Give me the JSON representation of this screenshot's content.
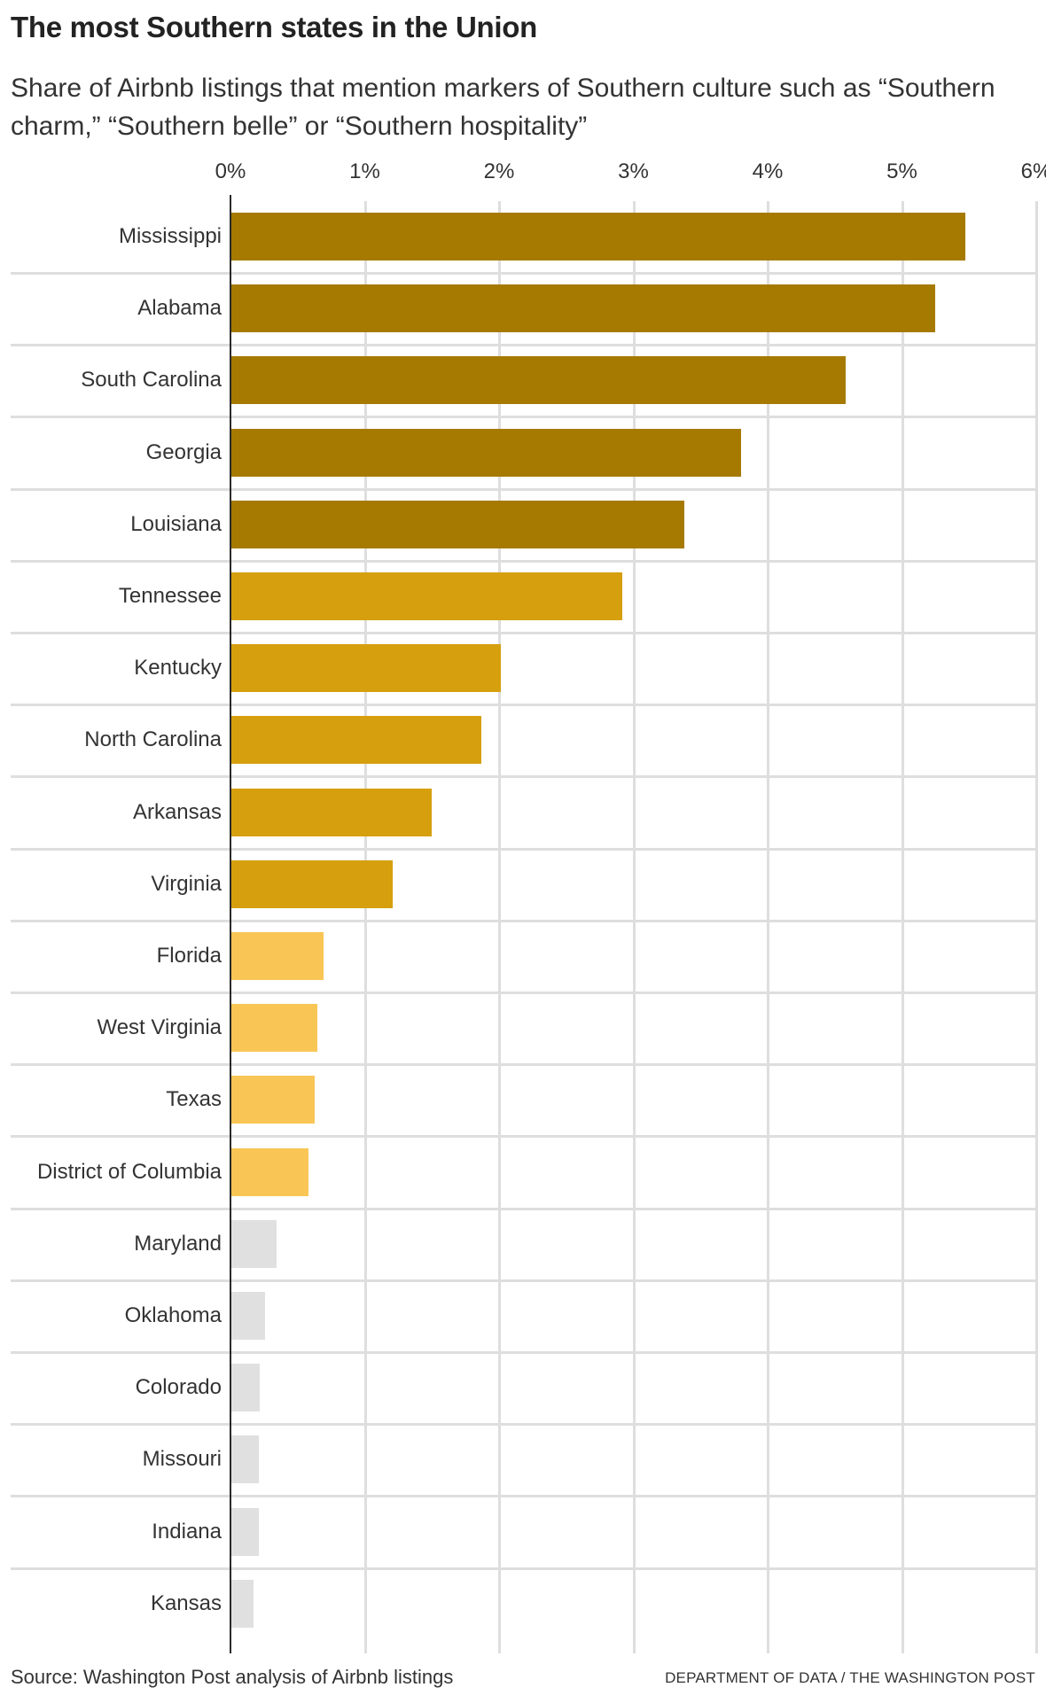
{
  "header": {
    "title": "The most Southern states in the Union",
    "subtitle": "Share of Airbnb listings that mention markers of Southern culture such as “Southern charm,” “Southern belle” or “Southern hospitality”"
  },
  "axis": {
    "ticks": [
      "0%",
      "1%",
      "2%",
      "3%",
      "4%",
      "5%",
      "6%"
    ]
  },
  "colors": {
    "tier1": "#a67a00",
    "tier2": "#d69f0e",
    "tier3": "#f9c655",
    "tier4": "#e0e0e0",
    "grid": "#dedede",
    "axis": "#2a2a2a"
  },
  "footer": {
    "source": "Source: Washington Post analysis of Airbnb listings",
    "credit": "DEPARTMENT OF DATA / THE WASHINGTON POST"
  },
  "chart_data": {
    "type": "bar",
    "orientation": "horizontal",
    "title": "The most Southern states in the Union",
    "subtitle": "Share of Airbnb listings that mention markers of Southern culture such as “Southern charm,” “Southern belle” or “Southern hospitality”",
    "xlabel": "",
    "ylabel": "",
    "xlim": [
      0,
      6
    ],
    "x_ticks": [
      "0%",
      "1%",
      "2%",
      "3%",
      "4%",
      "5%",
      "6%"
    ],
    "grid": true,
    "categories": [
      "Mississippi",
      "Alabama",
      "South Carolina",
      "Georgia",
      "Louisiana",
      "Tennessee",
      "Kentucky",
      "North Carolina",
      "Arkansas",
      "Virginia",
      "Florida",
      "West Virginia",
      "Texas",
      "District of Columbia",
      "Maryland",
      "Oklahoma",
      "Colorado",
      "Missouri",
      "Indiana",
      "Kansas"
    ],
    "values": [
      5.47,
      5.25,
      4.58,
      3.8,
      3.38,
      2.92,
      2.01,
      1.87,
      1.5,
      1.21,
      0.69,
      0.65,
      0.63,
      0.58,
      0.34,
      0.26,
      0.22,
      0.21,
      0.21,
      0.17
    ],
    "tiers": [
      1,
      1,
      1,
      1,
      1,
      2,
      2,
      2,
      2,
      2,
      3,
      3,
      3,
      3,
      4,
      4,
      4,
      4,
      4,
      4
    ],
    "unit": "%",
    "source": "Source: Washington Post analysis of Airbnb listings"
  }
}
